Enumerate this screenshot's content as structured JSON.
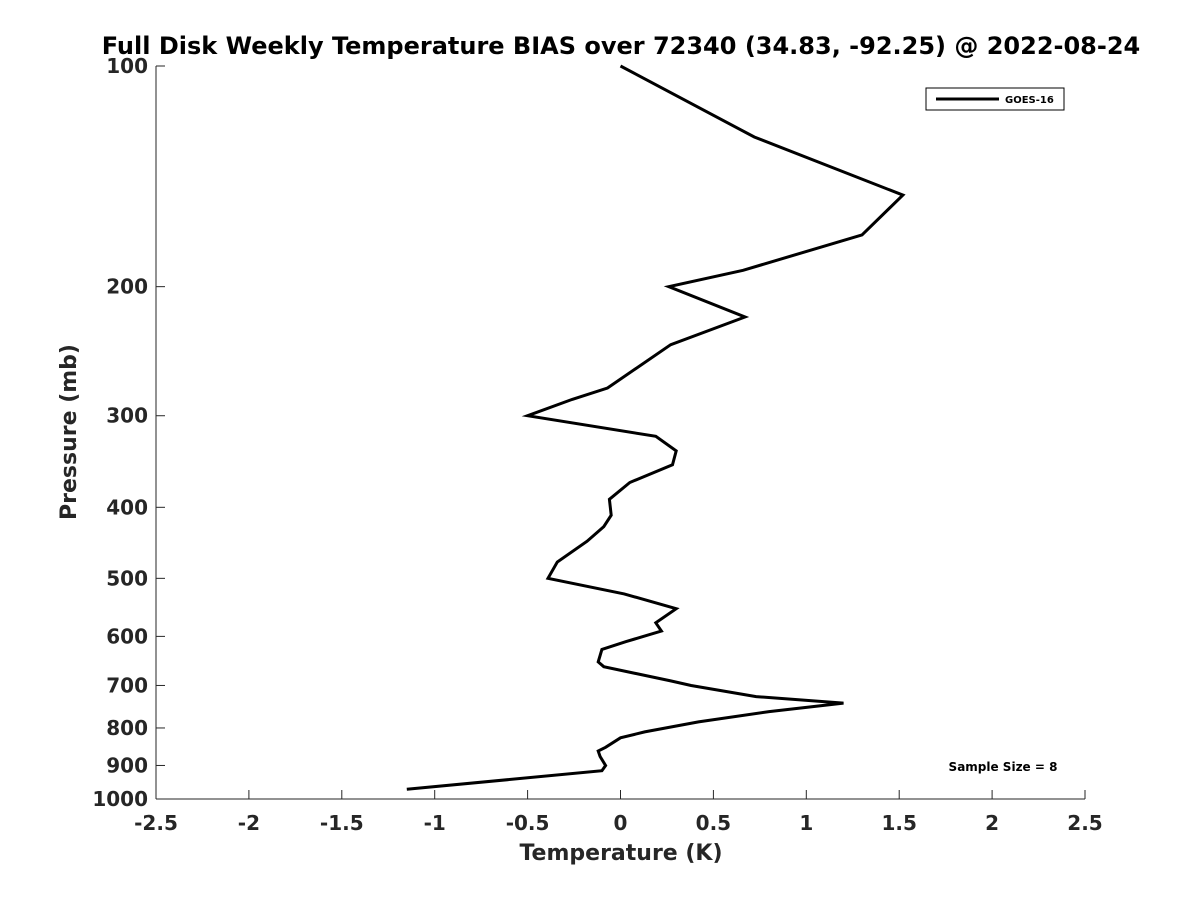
{
  "chart_data": {
    "type": "line",
    "title": "Full Disk Weekly Temperature BIAS over 72340 (34.83, -92.25) @ 2022-08-24",
    "xlabel": "Temperature (K)",
    "ylabel": "Pressure (mb)",
    "xlim": [
      -2.5,
      2.5
    ],
    "ylim": [
      1000,
      100
    ],
    "yscale": "log",
    "y_reversed": true,
    "grid": false,
    "legend_position": "top-right",
    "x_ticks": [
      "-2.5",
      "-2",
      "-1.5",
      "-1",
      "-0.5",
      "0",
      "0.5",
      "1",
      "1.5",
      "2",
      "2.5"
    ],
    "y_ticks": [
      "100",
      "200",
      "300",
      "400",
      "500",
      "600",
      "700",
      "800",
      "900",
      "1000"
    ],
    "annotation": "Sample Size = 8",
    "series": [
      {
        "name": "GOES-16",
        "color": "#000000",
        "x": [
          0.0,
          0.72,
          1.52,
          1.3,
          0.66,
          0.26,
          0.67,
          0.27,
          -0.07,
          -0.26,
          -0.5,
          0.19,
          0.3,
          0.28,
          0.05,
          -0.06,
          -0.05,
          -0.09,
          -0.18,
          -0.34,
          -0.39,
          0.02,
          0.3,
          0.19,
          0.22,
          0.03,
          -0.1,
          -0.12,
          -0.09,
          0.27,
          0.38,
          0.73,
          1.2,
          0.8,
          0.42,
          0.13,
          0.0,
          -0.08,
          -0.12,
          -0.11,
          -0.08,
          -0.1,
          -1.15
        ],
        "y": [
          100,
          125,
          150,
          170,
          190,
          200,
          220,
          240,
          275,
          285,
          300,
          320,
          335,
          350,
          370,
          390,
          410,
          425,
          445,
          475,
          500,
          525,
          550,
          575,
          590,
          610,
          625,
          650,
          660,
          690,
          700,
          725,
          740,
          760,
          785,
          810,
          825,
          850,
          860,
          875,
          900,
          915,
          970
        ]
      }
    ]
  }
}
